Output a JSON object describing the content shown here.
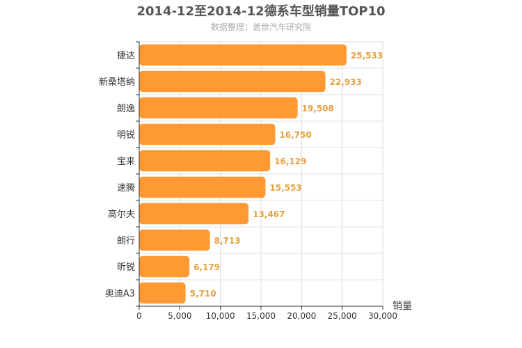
{
  "chart_data": {
    "type": "bar",
    "orientation": "horizontal",
    "title": "2014-12至2014-12德系车型销量TOP10",
    "subtitle": "数据整理：盖世汽车研究院",
    "categories": [
      "捷达",
      "新桑塔纳",
      "朗逸",
      "明锐",
      "宝来",
      "速腾",
      "高尔夫",
      "朗行",
      "昕锐",
      "奥迪A3"
    ],
    "values": [
      25533,
      22933,
      19508,
      16750,
      16129,
      15553,
      13467,
      8713,
      6179,
      5710
    ],
    "value_labels": [
      "25,533",
      "22,933",
      "19,508",
      "16,750",
      "16,129",
      "15,553",
      "13,467",
      "8,713",
      "6,179",
      "5,710"
    ],
    "xlim": [
      0,
      30000
    ],
    "xticks": [
      0,
      5000,
      10000,
      15000,
      20000,
      25000,
      30000
    ],
    "xtick_labels": [
      "0",
      "5,000",
      "10,000",
      "15,000",
      "20,000",
      "25,000",
      "30,000"
    ],
    "value_axis_label": "销量",
    "grid": true,
    "bar_color": "#ff9933",
    "label_color": "#e8a040"
  }
}
